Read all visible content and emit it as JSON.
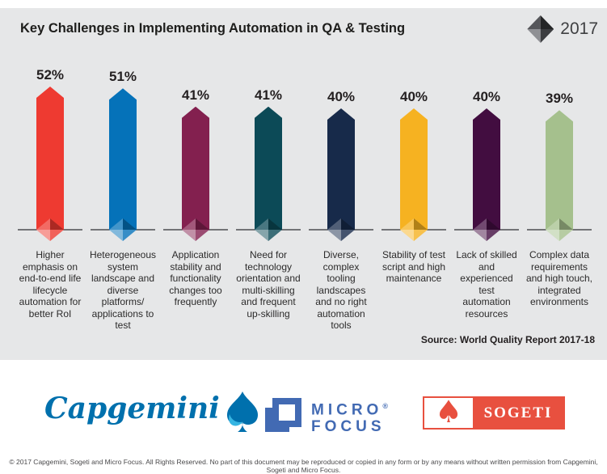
{
  "chart_data": {
    "type": "bar",
    "title": "Key Challenges in Implementing Automation in QA & Testing",
    "year_label": "2017",
    "unit": "%",
    "grid": false,
    "legend_position": "top-right",
    "ylim": [
      0,
      60
    ],
    "categories": [
      "Higher emphasis on end-to-end life lifecycle automation for better RoI",
      "Heterogeneous system landscape and diverse platforms/applications to test",
      "Application stability and functionality changes too frequently",
      "Need for technology orientation and multi-skilling and frequent up-skilling",
      "Diverse, complex tooling landscapes and no right automation tools",
      "Stability of test script and high maintenance",
      "Lack of skilled and experienced test automation resources",
      "Complex data requirements and high touch, integrated environments"
    ],
    "category_display": [
      "Higher\nemphasis on\nend-to-end life\nlifecycle\nautomation for\nbetter RoI",
      "Heterogeneous\nsystem\nlandscape and\ndiverse\nplatforms/\napplications to\ntest",
      "Application\nstability and\nfunctionality\nchanges too\nfrequently",
      "Need for\ntechnology\norientation and\nmulti-skilling\nand frequent\nup-skilling",
      "Diverse,\ncomplex\ntooling\nlandscapes\nand no right\nautomation\ntools",
      "Stability of test\nscript and high\nmaintenance",
      "Lack of skilled\nand\nexperienced\ntest\nautomation\nresources",
      "Complex data\nrequirements\nand high touch,\nintegrated\nenvironments"
    ],
    "values": [
      52,
      51,
      41,
      41,
      40,
      40,
      40,
      39
    ],
    "value_labels": [
      "52%",
      "51%",
      "41%",
      "41%",
      "40%",
      "40%",
      "40%",
      "39%"
    ],
    "bar_colors": [
      "#ee3a31",
      "#0572b9",
      "#83204f",
      "#0c4a57",
      "#172a4a",
      "#f6b221",
      "#420d40",
      "#a5c08d"
    ],
    "source": "Source: World Quality Report 2017-18"
  },
  "branding": {
    "capgemini": "Capgemini",
    "micro_focus_line1": "MICRO",
    "micro_focus_reg": "®",
    "micro_focus_line2": "FOCUS",
    "sogeti": "SOGETI"
  },
  "icons": {
    "sogeti_spade_glyph": "♠"
  },
  "footer": {
    "copyright": "© 2017 Capgemini, Sogeti and Micro Focus. All Rights Reserved. No part of this document may be reproduced or copied in any form or by any means without written permission from Capgemini, Sogeti and Micro Focus."
  },
  "colors": {
    "panel_bg": "#e6e7e8",
    "baseline": "#737477",
    "text_dark": "#231f20",
    "capgemini_blue": "#0070ad",
    "capgemini_light_blue": "#36b5e2",
    "micro_focus_blue": "#426ab3",
    "sogeti_red": "#e8503f"
  }
}
